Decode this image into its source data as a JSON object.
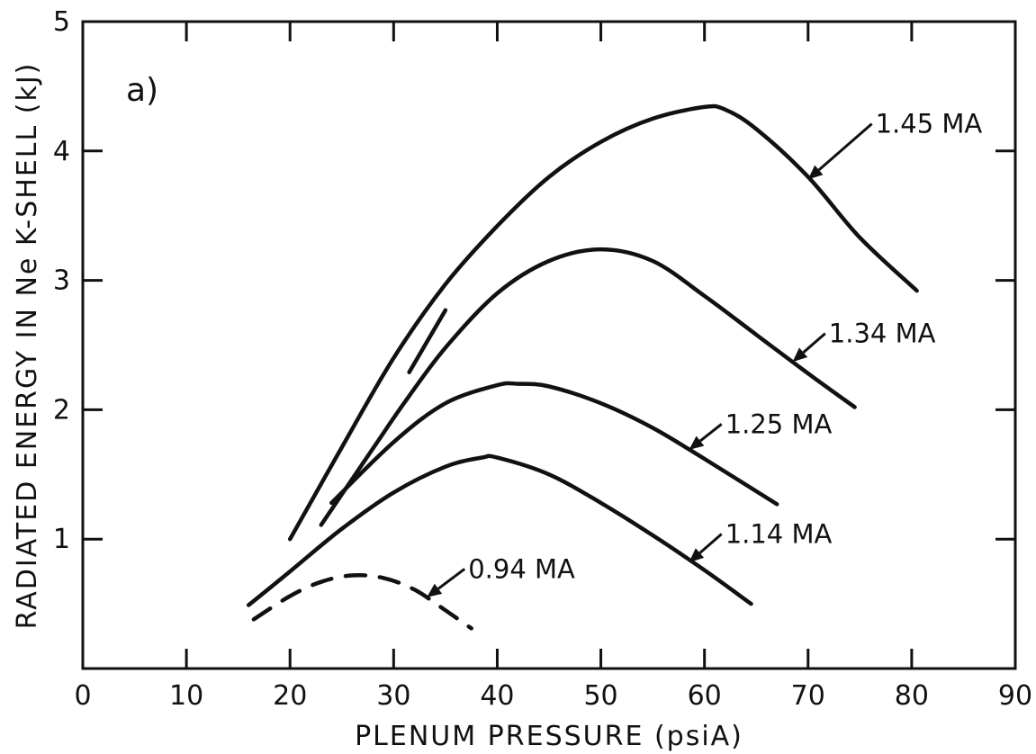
{
  "chart_data": {
    "type": "line",
    "panel_label": "a)",
    "xlabel": "PLENUM PRESSURE (psiA)",
    "ylabel": "RADIATED ENERGY IN Ne K-SHELL (kJ)",
    "xlim": [
      0,
      90
    ],
    "ylim": [
      0,
      5
    ],
    "x_ticks": [
      0,
      10,
      20,
      30,
      40,
      50,
      60,
      70,
      80,
      90
    ],
    "y_ticks": [
      1,
      2,
      3,
      4,
      5
    ],
    "grid": false,
    "legend": "none",
    "series": [
      {
        "name": "1.45 MA",
        "style": "solid",
        "x": [
          20.0,
          25,
          30,
          35,
          40,
          45,
          50,
          55,
          60,
          62,
          65,
          70,
          75,
          80.5
        ],
        "y": [
          1.0,
          1.71,
          2.4,
          2.97,
          3.42,
          3.8,
          4.07,
          4.25,
          4.34,
          4.32,
          4.17,
          3.8,
          3.33,
          2.92
        ]
      },
      {
        "name": "1.34 MA",
        "style": "solid",
        "x": [
          23.0,
          28,
          31,
          35,
          40,
          45,
          50,
          55,
          60,
          65,
          70,
          74.5
        ],
        "y": [
          1.11,
          1.7,
          2.05,
          2.48,
          2.9,
          3.15,
          3.24,
          3.15,
          2.88,
          2.58,
          2.28,
          2.02
        ]
      },
      {
        "name": "",
        "style": "solid",
        "x": [
          31.5,
          35
        ],
        "y": [
          2.29,
          2.77
        ]
      },
      {
        "name": "1.25 MA",
        "style": "solid",
        "x": [
          24.0,
          30,
          35,
          40,
          42,
          45,
          50,
          55,
          60,
          67
        ],
        "y": [
          1.28,
          1.75,
          2.05,
          2.19,
          2.2,
          2.18,
          2.05,
          1.86,
          1.62,
          1.27
        ]
      },
      {
        "name": "1.14 MA",
        "style": "solid",
        "x": [
          16.0,
          20,
          25,
          30,
          35,
          38.5,
          40,
          45,
          50,
          55,
          60,
          64.5
        ],
        "y": [
          0.49,
          0.75,
          1.08,
          1.36,
          1.56,
          1.63,
          1.63,
          1.5,
          1.28,
          1.03,
          0.76,
          0.5
        ]
      },
      {
        "name": "0.94 MA",
        "style": "dashed",
        "x": [
          16.5,
          20,
          23,
          26,
          29,
          32,
          35,
          37.5
        ],
        "y": [
          0.38,
          0.56,
          0.67,
          0.72,
          0.7,
          0.61,
          0.45,
          0.31
        ]
      }
    ],
    "annotations": [
      {
        "text": "1.45 MA",
        "series": "1.45 MA",
        "arrow_to": [
          70.0,
          3.78
        ],
        "text_at": [
          76.5,
          4.14
        ]
      },
      {
        "text": "1.34 MA",
        "series": "1.34 MA",
        "arrow_to": [
          68.5,
          2.37
        ],
        "text_at": [
          72.0,
          2.52
        ]
      },
      {
        "text": "1.25 MA",
        "series": "1.25 MA",
        "arrow_to": [
          58.5,
          1.69
        ],
        "text_at": [
          62.0,
          1.82
        ]
      },
      {
        "text": "1.14 MA",
        "series": "1.14 MA",
        "arrow_to": [
          58.5,
          0.82
        ],
        "text_at": [
          62.0,
          0.97
        ]
      },
      {
        "text": "0.94 MA",
        "series": "0.94 MA",
        "arrow_to": [
          33.2,
          0.55
        ],
        "text_at": [
          37.2,
          0.7
        ]
      }
    ]
  }
}
